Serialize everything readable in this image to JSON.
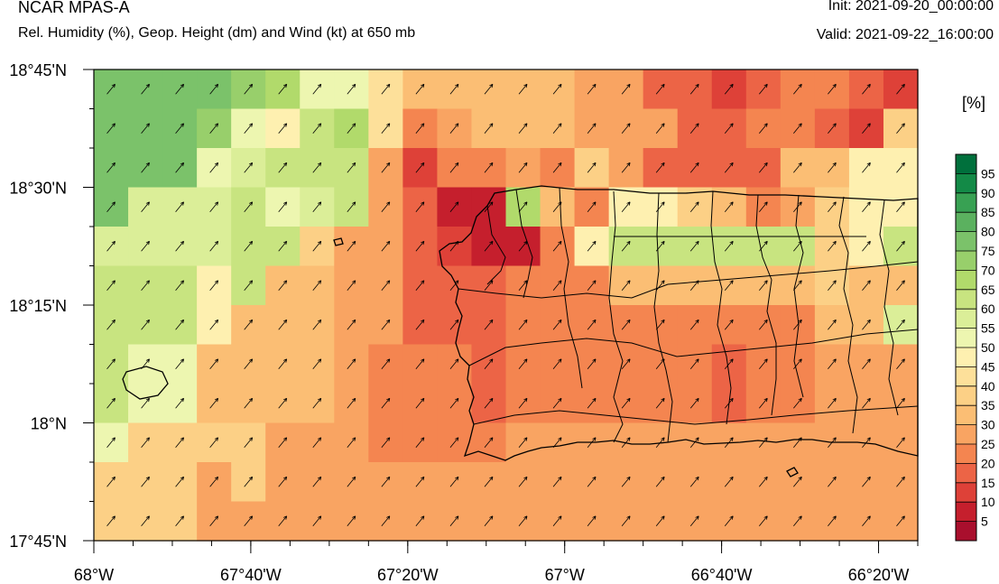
{
  "header": {
    "model": "NCAR MPAS-A",
    "description": "Rel. Humidity (%), Geop. Height (dm) and Wind (kt) at 650 mb",
    "init": "Init: 2021-09-20_00:00:00",
    "valid": "Valid: 2021-09-22_16:00:00"
  },
  "colorbar": {
    "unit": "[%]",
    "labels": [
      "95",
      "90",
      "85",
      "80",
      "75",
      "70",
      "65",
      "60",
      "55",
      "50",
      "45",
      "40",
      "35",
      "30",
      "25",
      "20",
      "15",
      "10",
      "5"
    ],
    "colors": [
      "#00703c",
      "#138a47",
      "#38a153",
      "#5bb15f",
      "#7bc26a",
      "#98cf6b",
      "#b1da6b",
      "#c8e480",
      "#dbee98",
      "#edf6b0",
      "#fef0b0",
      "#fde09a",
      "#fcd086",
      "#fbbe74",
      "#f9a462",
      "#f48550",
      "#ec6446",
      "#de4138",
      "#c51f2d",
      "#a90f2d"
    ]
  },
  "axes": {
    "lat_labels": [
      "18°45'N",
      "18°30'N",
      "18°15'N",
      "18°N",
      "17°45'N"
    ],
    "lon_labels": [
      "68°W",
      "67°40'W",
      "67°20'W",
      "67°W",
      "66°40'W",
      "66°20'W"
    ]
  },
  "map_data": {
    "type": "heatmap",
    "field": "relative humidity",
    "pressure_level_mb": 650,
    "lon_range": [
      -68.0,
      -66.25
    ],
    "lat_range": [
      17.75,
      18.75
    ],
    "rows_top_to_bottom_percent": [
      [
        77,
        77,
        77,
        77,
        72,
        67,
        54,
        54,
        44,
        34,
        34,
        34,
        34,
        34,
        29,
        29,
        19,
        19,
        14,
        19,
        24,
        24,
        19,
        14
      ],
      [
        77,
        77,
        77,
        72,
        52,
        47,
        62,
        67,
        44,
        24,
        29,
        34,
        34,
        34,
        29,
        29,
        29,
        19,
        19,
        24,
        24,
        19,
        14,
        39
      ],
      [
        77,
        77,
        77,
        52,
        57,
        62,
        62,
        62,
        29,
        14,
        24,
        24,
        29,
        24,
        39,
        29,
        19,
        19,
        19,
        19,
        34,
        34,
        49,
        49
      ],
      [
        77,
        57,
        57,
        57,
        62,
        52,
        57,
        62,
        29,
        19,
        9,
        9,
        69,
        34,
        24,
        49,
        49,
        39,
        34,
        24,
        29,
        39,
        49,
        49
      ],
      [
        57,
        57,
        57,
        57,
        62,
        62,
        39,
        29,
        29,
        19,
        14,
        9,
        9,
        24,
        49,
        64,
        64,
        64,
        64,
        64,
        64,
        39,
        49,
        64
      ],
      [
        62,
        62,
        62,
        49,
        62,
        34,
        34,
        29,
        29,
        19,
        19,
        19,
        24,
        24,
        24,
        34,
        34,
        34,
        34,
        34,
        34,
        39,
        34,
        34
      ],
      [
        62,
        62,
        62,
        49,
        34,
        34,
        34,
        29,
        29,
        19,
        19,
        19,
        24,
        24,
        24,
        24,
        24,
        24,
        24,
        24,
        24,
        34,
        34,
        59
      ],
      [
        62,
        52,
        52,
        34,
        34,
        34,
        34,
        29,
        24,
        24,
        24,
        19,
        24,
        24,
        24,
        24,
        24,
        24,
        19,
        24,
        24,
        29,
        29,
        29
      ],
      [
        62,
        52,
        52,
        34,
        34,
        34,
        34,
        29,
        24,
        24,
        24,
        19,
        24,
        24,
        24,
        24,
        24,
        24,
        19,
        24,
        24,
        29,
        29,
        29
      ],
      [
        52,
        39,
        39,
        39,
        39,
        29,
        29,
        29,
        24,
        24,
        24,
        24,
        29,
        29,
        29,
        29,
        29,
        29,
        29,
        29,
        29,
        29,
        29,
        29
      ],
      [
        39,
        39,
        39,
        29,
        39,
        29,
        29,
        29,
        29,
        29,
        29,
        29,
        29,
        29,
        29,
        29,
        29,
        29,
        29,
        29,
        29,
        29,
        29,
        29
      ],
      [
        39,
        39,
        39,
        29,
        29,
        29,
        29,
        29,
        29,
        29,
        29,
        29,
        29,
        29,
        29,
        29,
        29,
        29,
        29,
        29,
        29,
        29,
        29,
        29
      ]
    ]
  }
}
